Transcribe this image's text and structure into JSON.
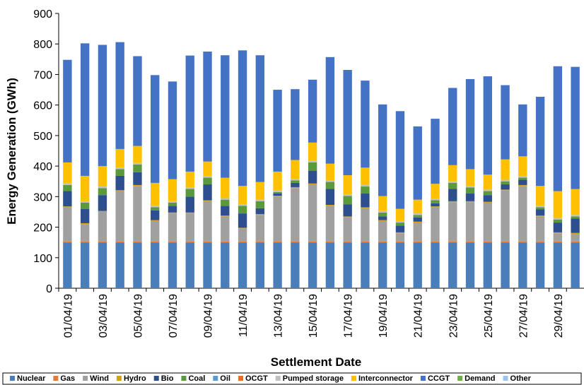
{
  "chart_data": {
    "type": "stacked-bar",
    "x_label": "Settlement Date",
    "y_label": "Energy Generation (GWh)",
    "categories": [
      "01/04/19",
      null,
      "03/04/19",
      null,
      "05/04/19",
      null,
      "07/04/19",
      null,
      "09/04/19",
      null,
      "11/04/19",
      null,
      "13/04/19",
      null,
      "15/04/19",
      null,
      "17/04/19",
      null,
      "19/04/19",
      null,
      "21/04/19",
      null,
      "23/04/19",
      null,
      "25/04/19",
      null,
      "27/04/19",
      null,
      "29/04/19",
      null
    ],
    "ylim": [
      0,
      900
    ],
    "yticks": [
      0,
      100,
      200,
      300,
      400,
      500,
      600,
      700,
      800,
      900
    ],
    "series": [
      {
        "name": "Nuclear",
        "color": "#4a7ebb",
        "values": [
          150,
          150,
          150,
          150,
          150,
          150,
          150,
          150,
          150,
          150,
          150,
          150,
          150,
          150,
          150,
          150,
          150,
          150,
          150,
          150,
          150,
          150,
          150,
          150,
          150,
          150,
          150,
          150,
          150,
          150
        ]
      },
      {
        "name": "Gas",
        "color": "#e07b39",
        "values": [
          3,
          3,
          3,
          3,
          3,
          3,
          3,
          3,
          3,
          3,
          3,
          3,
          3,
          3,
          3,
          3,
          3,
          3,
          3,
          3,
          3,
          3,
          3,
          3,
          3,
          3,
          3,
          3,
          3,
          3
        ]
      },
      {
        "name": "Wind",
        "color": "#a0a0a0",
        "values": [
          112,
          57,
          97,
          165,
          182,
          67,
          92,
          92,
          132,
          82,
          42,
          87,
          147,
          175,
          187,
          117,
          79,
          109,
          67,
          27,
          62,
          112,
          129,
          129,
          127,
          167,
          182,
          82,
          27,
          25
        ]
      },
      {
        "name": "Hydro",
        "color": "#d4a017",
        "values": [
          3,
          3,
          3,
          3,
          3,
          3,
          3,
          3,
          3,
          3,
          3,
          3,
          3,
          3,
          3,
          3,
          3,
          3,
          3,
          3,
          3,
          3,
          3,
          3,
          3,
          3,
          3,
          3,
          3,
          3
        ]
      },
      {
        "name": "Bio",
        "color": "#2e4f8f",
        "values": [
          50,
          47,
          52,
          47,
          42,
          32,
          22,
          52,
          52,
          32,
          47,
          19,
          7,
          14,
          42,
          52,
          40,
          45,
          12,
          22,
          14,
          10,
          40,
          25,
          22,
          17,
          17,
          20,
          32,
          47
        ]
      },
      {
        "name": "Coal",
        "color": "#5a9a3a",
        "values": [
          20,
          20,
          23,
          22,
          25,
          10,
          10,
          25,
          22,
          20,
          25,
          23,
          5,
          8,
          27,
          23,
          27,
          23,
          13,
          10,
          8,
          10,
          20,
          20,
          13,
          10,
          7,
          7,
          10,
          7
        ]
      },
      {
        "name": "Oil",
        "color": "#5b9bd5",
        "values": [
          0,
          0,
          0,
          0,
          0,
          0,
          0,
          0,
          0,
          0,
          0,
          0,
          0,
          0,
          0,
          0,
          0,
          0,
          0,
          0,
          0,
          0,
          0,
          0,
          0,
          0,
          0,
          0,
          0,
          0
        ]
      },
      {
        "name": "OCGT",
        "color": "#e0702a",
        "values": [
          0,
          0,
          0,
          0,
          0,
          0,
          0,
          0,
          0,
          0,
          0,
          0,
          0,
          0,
          0,
          0,
          0,
          0,
          0,
          0,
          0,
          0,
          0,
          0,
          0,
          0,
          0,
          0,
          0,
          0
        ]
      },
      {
        "name": "Pumped storage",
        "color": "#c0c0c0",
        "values": [
          5,
          5,
          5,
          5,
          5,
          5,
          5,
          5,
          5,
          5,
          5,
          5,
          5,
          5,
          5,
          5,
          5,
          5,
          5,
          5,
          5,
          5,
          5,
          5,
          5,
          5,
          5,
          5,
          5,
          5
        ]
      },
      {
        "name": "Interconnector",
        "color": "#ffc000",
        "values": [
          69,
          83,
          67,
          61,
          56,
          75,
          72,
          52,
          48,
          67,
          60,
          58,
          62,
          62,
          60,
          55,
          63,
          57,
          49,
          40,
          45,
          49,
          53,
          55,
          49,
          67,
          65,
          65,
          88,
          85
        ]
      },
      {
        "name": "CCGT",
        "color": "#4472c4",
        "values": [
          336,
          434,
          397,
          350,
          294,
          353,
          320,
          380,
          360,
          401,
          444,
          415,
          268,
          232,
          206,
          349,
          345,
          285,
          300,
          320,
          240,
          213,
          253,
          295,
          322,
          243,
          170,
          292,
          409,
          400
        ]
      },
      {
        "name": "Demand",
        "color": "#70ad47",
        "values": [
          0,
          0,
          0,
          0,
          0,
          0,
          0,
          0,
          0,
          0,
          0,
          0,
          0,
          0,
          0,
          0,
          0,
          0,
          0,
          0,
          0,
          0,
          0,
          0,
          0,
          0,
          0,
          0,
          0,
          0
        ]
      },
      {
        "name": "Other",
        "color": "#9dc3e6",
        "values": [
          0,
          0,
          0,
          0,
          0,
          0,
          0,
          0,
          0,
          0,
          0,
          0,
          0,
          0,
          0,
          0,
          0,
          0,
          0,
          0,
          0,
          0,
          0,
          0,
          0,
          0,
          0,
          0,
          0,
          0
        ]
      }
    ]
  }
}
